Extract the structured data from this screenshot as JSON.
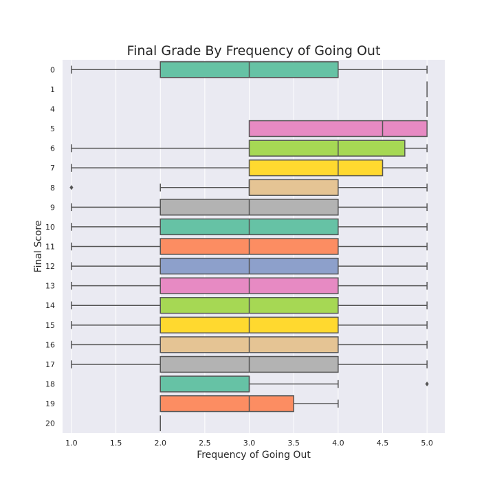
{
  "chart_data": {
    "type": "boxplot",
    "orientation": "horizontal",
    "title": "Final Grade By Frequency of Going Out",
    "xlabel": "Frequency of Going Out",
    "ylabel": "Final Score",
    "xlim": [
      0.9,
      5.2
    ],
    "x_ticks": [
      "1.0",
      "1.5",
      "2.0",
      "2.5",
      "3.0",
      "3.5",
      "4.0",
      "4.5",
      "5.0"
    ],
    "grid": true,
    "background": "#EAEAF2",
    "palette": [
      "#66C2A5",
      "#FC8D62",
      "#8DA0CB",
      "#E78AC3",
      "#A6D854",
      "#FFD92F",
      "#E5C494",
      "#B3B3B3"
    ],
    "categories": [
      "0",
      "1",
      "4",
      "5",
      "6",
      "7",
      "8",
      "9",
      "10",
      "11",
      "12",
      "13",
      "14",
      "15",
      "16",
      "17",
      "18",
      "19",
      "20"
    ],
    "boxes": [
      {
        "category": "0",
        "whisker_low": 1,
        "q1": 2,
        "median": 3,
        "q3": 4,
        "whisker_high": 5,
        "outliers": [],
        "color": "#66C2A5"
      },
      {
        "category": "1",
        "whisker_low": 5,
        "q1": 5,
        "median": 5,
        "q3": 5,
        "whisker_high": 5,
        "outliers": [],
        "color": "#FC8D62"
      },
      {
        "category": "4",
        "whisker_low": 5,
        "q1": 5,
        "median": 5,
        "q3": 5,
        "whisker_high": 5,
        "outliers": [],
        "color": "#8DA0CB"
      },
      {
        "category": "5",
        "whisker_low": 3,
        "q1": 3,
        "median": 4.5,
        "q3": 5,
        "whisker_high": 5,
        "outliers": [],
        "color": "#E78AC3"
      },
      {
        "category": "6",
        "whisker_low": 1,
        "q1": 3,
        "median": 4,
        "q3": 4.75,
        "whisker_high": 5,
        "outliers": [],
        "color": "#A6D854"
      },
      {
        "category": "7",
        "whisker_low": 1,
        "q1": 3,
        "median": 4,
        "q3": 4.5,
        "whisker_high": 5,
        "outliers": [],
        "color": "#FFD92F"
      },
      {
        "category": "8",
        "whisker_low": 2,
        "q1": 3,
        "median": 3,
        "q3": 4,
        "whisker_high": 5,
        "outliers": [
          1
        ],
        "color": "#E5C494"
      },
      {
        "category": "9",
        "whisker_low": 1,
        "q1": 2,
        "median": 3,
        "q3": 4,
        "whisker_high": 5,
        "outliers": [],
        "color": "#B3B3B3"
      },
      {
        "category": "10",
        "whisker_low": 1,
        "q1": 2,
        "median": 3,
        "q3": 4,
        "whisker_high": 5,
        "outliers": [],
        "color": "#66C2A5"
      },
      {
        "category": "11",
        "whisker_low": 1,
        "q1": 2,
        "median": 3,
        "q3": 4,
        "whisker_high": 5,
        "outliers": [],
        "color": "#FC8D62"
      },
      {
        "category": "12",
        "whisker_low": 1,
        "q1": 2,
        "median": 3,
        "q3": 4,
        "whisker_high": 5,
        "outliers": [],
        "color": "#8DA0CB"
      },
      {
        "category": "13",
        "whisker_low": 1,
        "q1": 2,
        "median": 3,
        "q3": 4,
        "whisker_high": 5,
        "outliers": [],
        "color": "#E78AC3"
      },
      {
        "category": "14",
        "whisker_low": 1,
        "q1": 2,
        "median": 3,
        "q3": 4,
        "whisker_high": 5,
        "outliers": [],
        "color": "#A6D854"
      },
      {
        "category": "15",
        "whisker_low": 1,
        "q1": 2,
        "median": 3,
        "q3": 4,
        "whisker_high": 5,
        "outliers": [],
        "color": "#FFD92F"
      },
      {
        "category": "16",
        "whisker_low": 1,
        "q1": 2,
        "median": 3,
        "q3": 4,
        "whisker_high": 5,
        "outliers": [],
        "color": "#E5C494"
      },
      {
        "category": "17",
        "whisker_low": 1,
        "q1": 2,
        "median": 3,
        "q3": 4,
        "whisker_high": 5,
        "outliers": [],
        "color": "#B3B3B3"
      },
      {
        "category": "18",
        "whisker_low": 2,
        "q1": 2,
        "median": 3,
        "q3": 3,
        "whisker_high": 4,
        "outliers": [
          5
        ],
        "color": "#66C2A5"
      },
      {
        "category": "19",
        "whisker_low": 2,
        "q1": 2,
        "median": 3,
        "q3": 3.5,
        "whisker_high": 4,
        "outliers": [],
        "color": "#FC8D62"
      },
      {
        "category": "20",
        "whisker_low": 2,
        "q1": 2,
        "median": 2,
        "q3": 2,
        "whisker_high": 2,
        "outliers": [],
        "color": "#8DA0CB"
      }
    ]
  }
}
